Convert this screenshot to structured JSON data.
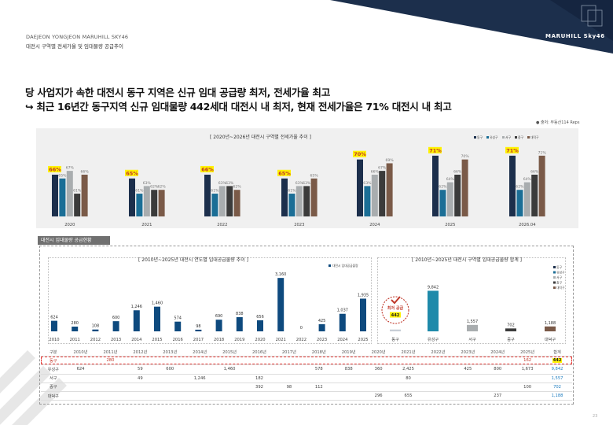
{
  "header": {
    "brand": "DAEJEON YONGJEON MARUHILL SKY46",
    "subtitle": "대전시 구역별 전세가율 및 임대물량 공급추이",
    "logo": "MARUHILL Sky46"
  },
  "headline": {
    "line1": "당 사업지가 속한 대전시 동구 지역은 신규 임대 공급량 최저, 전세가율 최고",
    "line2": "↪ 최근 16년간 동구지역 신규 임대물량 442세대 대전시 내 최저, 현재 전세가율은 71% 대전시 내 최고"
  },
  "source": "● 출처: 부동산114 Reps",
  "section_tag": "대전시 임대물량 공급현황",
  "colors": {
    "navy": "#1c2f4c",
    "teal": "#1b6e96",
    "gray": "#a9adaf",
    "dark": "#3b3b3b",
    "brown": "#7a5a48",
    "highlight": "#fff200",
    "blue_bar": "#0e4a7e",
    "yuseong": "#1f8aaa",
    "red": "#c0392b"
  },
  "chart_data": [
    {
      "type": "bar",
      "title": "2020년~2026년 대전시 구역별 전세가율 추이",
      "categories": [
        "2020",
        "2021",
        "2022",
        "2023",
        "2024",
        "2025",
        "2026.04"
      ],
      "series": [
        {
          "name": "동구",
          "values": [
            66,
            65,
            66,
            65,
            70,
            71,
            71
          ]
        },
        {
          "name": "유성구",
          "values": [
            65,
            61,
            61,
            61,
            63,
            62,
            62
          ]
        },
        {
          "name": "서구",
          "values": [
            67,
            63,
            63,
            63,
            66,
            64,
            64
          ]
        },
        {
          "name": "중구",
          "values": [
            61,
            62,
            63,
            63,
            67,
            66,
            66
          ]
        },
        {
          "name": "대덕구",
          "values": [
            66,
            62,
            62,
            65,
            69,
            70,
            71
          ]
        }
      ],
      "labels": [
        [
          "66%",
          "65%",
          "67%",
          "61%",
          "66%"
        ],
        [
          "65%",
          "61%",
          "63%",
          "62%",
          "62%"
        ],
        [
          "66%",
          "61%",
          "63%",
          "63%",
          "62%"
        ],
        [
          "65%",
          "61%",
          "63%",
          "63%",
          "65%"
        ],
        [
          "70%",
          "63%",
          "66%",
          "67%",
          "69%"
        ],
        [
          "71%",
          "62%",
          "64%",
          "66%",
          "70%"
        ],
        [
          "71%",
          "62%",
          "64%",
          "66%",
          "71%"
        ]
      ],
      "legend": [
        "동구",
        "유성구",
        "서구",
        "중구",
        "대덕구"
      ],
      "ylim": [
        55,
        72
      ],
      "grid": false,
      "legend_position": "top-right"
    },
    {
      "type": "bar",
      "title": "2010년~2025년 대전시 연도별 임대공급물량 추이",
      "legend": [
        "대전시 임대공급물량"
      ],
      "categories": [
        "2010",
        "2011",
        "2012",
        "2013",
        "2014",
        "2015",
        "2016",
        "2017",
        "2018",
        "2019",
        "2020",
        "2021",
        "2022",
        "2023",
        "2024",
        "2025"
      ],
      "values": [
        624,
        280,
        108,
        600,
        1246,
        1460,
        574,
        98,
        690,
        838,
        656,
        3160,
        0,
        425,
        1037,
        1935
      ],
      "labels": [
        "624",
        "280",
        "108",
        "600",
        "1,246",
        "1,460",
        "574",
        "98",
        "690",
        "838",
        "656",
        "3,160",
        "0",
        "425",
        "1,037",
        "1,935"
      ],
      "ylim": [
        0,
        3400
      ],
      "grid": false,
      "legend_position": "top-right"
    },
    {
      "type": "bar",
      "title": "2010년~2025년 대전시 구역별 임대공급물량 합계",
      "categories": [
        "동구",
        "유성구",
        "서구",
        "중구",
        "대덕구"
      ],
      "values": [
        442,
        9842,
        1557,
        702,
        1188
      ],
      "labels": [
        "442",
        "9,842",
        "1,557",
        "702",
        "1,188"
      ],
      "legend": [
        "동구",
        "유성구",
        "서구",
        "중구",
        "대덕구"
      ],
      "annotation": "최저 공급",
      "ylim": [
        0,
        10500
      ],
      "grid": false,
      "legend_position": "top-right"
    }
  ],
  "table": {
    "header": [
      "구분",
      "2010년",
      "2011년",
      "2012년",
      "2013년",
      "2014년",
      "2015년",
      "2016년",
      "2017년",
      "2018년",
      "2019년",
      "2020년",
      "2021년",
      "2022년",
      "2023년",
      "2024년",
      "2025년",
      "합계"
    ],
    "rows": [
      [
        "동구",
        "",
        "280",
        "",
        "",
        "",
        "",
        "",
        "",
        "",
        "",
        "",
        "",
        "",
        "",
        "",
        "162",
        "442"
      ],
      [
        "유성구",
        "624",
        "",
        "59",
        "600",
        "",
        "1,460",
        "",
        "",
        "578",
        "838",
        "360",
        "2,425",
        "",
        "425",
        "800",
        "1,673",
        "9,842"
      ],
      [
        "서구",
        "",
        "",
        "49",
        "",
        "1,246",
        "",
        "182",
        "",
        "",
        "",
        "",
        "80",
        "",
        "",
        "",
        "",
        "1,557"
      ],
      [
        "중구",
        "",
        "",
        "",
        "",
        "",
        "",
        "392",
        "98",
        "112",
        "",
        "",
        "",
        "",
        "",
        "",
        "100",
        "702"
      ],
      [
        "대덕구",
        "",
        "",
        "",
        "",
        "",
        "",
        "",
        "",
        "",
        "",
        "296",
        "655",
        "",
        "",
        "237",
        "",
        "1,188"
      ]
    ]
  },
  "page_number": "23"
}
